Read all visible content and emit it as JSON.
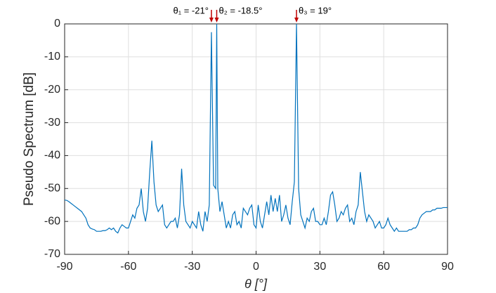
{
  "chart_data": {
    "type": "line",
    "xlabel": "θ [°]",
    "ylabel": "Pseudo Spectrum [dB]",
    "xlim": [
      -90,
      90
    ],
    "ylim": [
      -70,
      0
    ],
    "xticks": [
      -90,
      -60,
      -30,
      0,
      30,
      60,
      90
    ],
    "yticks": [
      -70,
      -60,
      -50,
      -40,
      -30,
      -20,
      -10,
      0
    ],
    "grid": true,
    "annotations": [
      {
        "text": "θ₁ = -21°",
        "x": -21,
        "color": "#c00000"
      },
      {
        "text": "θ₂ = -18.5°",
        "x": -18.5,
        "color": "#c00000"
      },
      {
        "text": "θ₃ = 19°",
        "x": 19,
        "color": "#c00000"
      }
    ],
    "x": [
      -90,
      -89,
      -88,
      -87,
      -86,
      -85,
      -84,
      -83,
      -82,
      -81,
      -80,
      -79,
      -78,
      -77,
      -76,
      -75,
      -74,
      -73,
      -72,
      -71,
      -70,
      -69,
      -68,
      -67,
      -66,
      -65,
      -64,
      -63,
      -62,
      -61,
      -60,
      -59,
      -58,
      -57,
      -56,
      -55,
      -54,
      -53,
      -52,
      -51,
      -50,
      -49,
      -48,
      -47,
      -46,
      -45,
      -44,
      -43,
      -42,
      -41,
      -40,
      -39,
      -38,
      -37,
      -36,
      -35,
      -34,
      -33,
      -32,
      -31,
      -30,
      -29,
      -28,
      -27,
      -26,
      -25,
      -24,
      -23,
      -22,
      -21,
      -20,
      -19,
      -18.5,
      -18,
      -17,
      -16,
      -15,
      -14,
      -13,
      -12,
      -11,
      -10,
      -9,
      -8,
      -7,
      -6,
      -5,
      -4,
      -3,
      -2,
      -1,
      0,
      1,
      2,
      3,
      4,
      5,
      6,
      7,
      8,
      9,
      10,
      11,
      12,
      13,
      14,
      15,
      16,
      17,
      18,
      19,
      20,
      21,
      22,
      23,
      24,
      25,
      26,
      27,
      28,
      29,
      30,
      31,
      32,
      33,
      34,
      35,
      36,
      37,
      38,
      39,
      40,
      41,
      42,
      43,
      44,
      45,
      46,
      47,
      48,
      49,
      50,
      51,
      52,
      53,
      54,
      55,
      56,
      57,
      58,
      59,
      60,
      61,
      62,
      63,
      64,
      65,
      66,
      67,
      68,
      69,
      70,
      71,
      72,
      73,
      74,
      75,
      76,
      77,
      78,
      79,
      80,
      81,
      82,
      83,
      84,
      85,
      86,
      87,
      88,
      89,
      90
    ],
    "series": [
      {
        "color": "#0072bd",
        "values": [
          -53.5,
          -53.6,
          -54,
          -54.5,
          -55,
          -55.5,
          -56,
          -56.5,
          -57,
          -58,
          -59,
          -61,
          -62,
          -62.3,
          -62.5,
          -63,
          -63,
          -63,
          -62.8,
          -62.8,
          -62.5,
          -62,
          -62.5,
          -62,
          -63,
          -63.5,
          -62,
          -61,
          -61.5,
          -62,
          -62,
          -60,
          -58,
          -59,
          -56,
          -55,
          -50,
          -57,
          -60,
          -56,
          -45,
          -35.5,
          -48,
          -55,
          -57,
          -56,
          -55,
          -61,
          -62,
          -61,
          -60,
          -60,
          -59,
          -62,
          -58,
          -44,
          -55,
          -60,
          -61,
          -62,
          -60,
          -61,
          -62,
          -57,
          -61,
          -63,
          -57,
          -60,
          -55,
          -2.5,
          -49,
          -50,
          0,
          -50,
          -57,
          -54,
          -58,
          -62,
          -60,
          -62,
          -58,
          -57,
          -61,
          -60,
          -62,
          -56,
          -57,
          -58,
          -56,
          -55,
          -61,
          -62,
          -55,
          -60,
          -62,
          -58,
          -54,
          -58,
          -52,
          -57,
          -53,
          -57,
          -52,
          -60,
          -58,
          -55,
          -59,
          -61,
          -54,
          -48,
          0,
          -50,
          -58,
          -60,
          -62,
          -59,
          -60,
          -57,
          -56,
          -60,
          -60,
          -61,
          -61,
          -59,
          -61,
          -57,
          -52,
          -51,
          -55,
          -60,
          -59,
          -57,
          -58,
          -56,
          -55,
          -60,
          -59,
          -61,
          -57,
          -55,
          -45,
          -51,
          -57,
          -60,
          -58,
          -59,
          -60,
          -62,
          -61,
          -60,
          -62,
          -62,
          -61,
          -59,
          -61,
          -62,
          -63,
          -62,
          -63,
          -63,
          -63,
          -63,
          -63,
          -62.5,
          -62.5,
          -62,
          -62,
          -61,
          -59,
          -58,
          -57.5,
          -57,
          -57,
          -57,
          -56.5,
          -56.5,
          -56,
          -56,
          -56,
          -55.8,
          -55.8,
          -55.8
        ]
      }
    ]
  }
}
